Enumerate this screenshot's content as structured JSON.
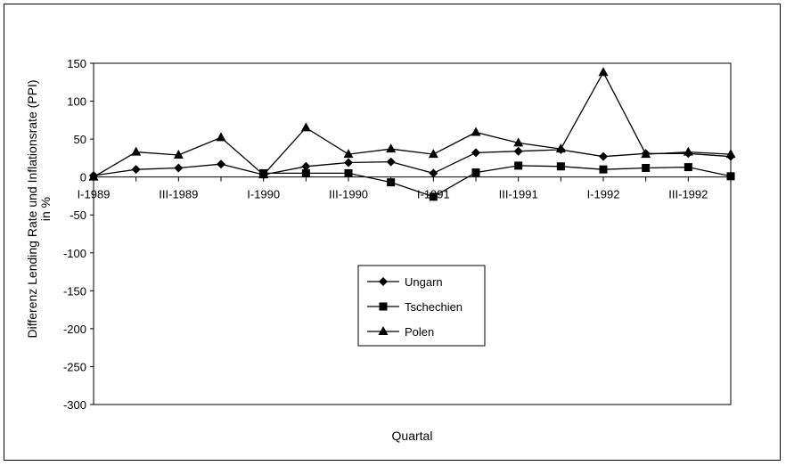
{
  "chart_data": {
    "type": "line",
    "xlabel": "Quartal",
    "ylabel_lines": [
      "Differenz Lending Rate und Inflationsrate (PPI)",
      "in %"
    ],
    "ylim": [
      -300,
      150
    ],
    "yticks": [
      150,
      100,
      50,
      0,
      -50,
      -100,
      -150,
      -200,
      -250,
      -300
    ],
    "x_count": 16,
    "x_tick_labels": [
      {
        "index": 0,
        "label": "I-1989"
      },
      {
        "index": 2,
        "label": "III-1989"
      },
      {
        "index": 4,
        "label": "I-1990"
      },
      {
        "index": 6,
        "label": "III-1990"
      },
      {
        "index": 8,
        "label": "I-1991"
      },
      {
        "index": 10,
        "label": "III-1991"
      },
      {
        "index": 12,
        "label": "I-1992"
      },
      {
        "index": 14,
        "label": "III-1992"
      }
    ],
    "legend_position": "center",
    "series": [
      {
        "name": "Ungarn",
        "marker": "diamond",
        "values": [
          2,
          10,
          12,
          17,
          3,
          14,
          19,
          20,
          5,
          32,
          34,
          36,
          27,
          31,
          31,
          27
        ]
      },
      {
        "name": "Tschechien",
        "marker": "square",
        "values": [
          null,
          null,
          null,
          null,
          5,
          5,
          5,
          -7,
          -26,
          6,
          15,
          14,
          10,
          12,
          13,
          1
        ]
      },
      {
        "name": "Polen",
        "marker": "triangle",
        "values": [
          0,
          33,
          29,
          52,
          3,
          65,
          30,
          37,
          30,
          59,
          45,
          37,
          138,
          30,
          33,
          30
        ]
      }
    ]
  }
}
